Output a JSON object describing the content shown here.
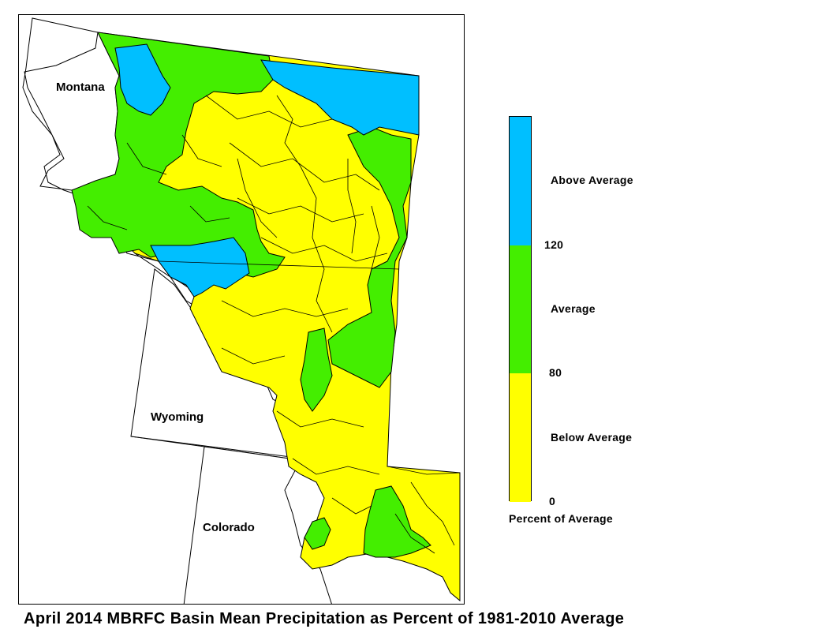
{
  "map": {
    "states": [
      {
        "name": "Montana"
      },
      {
        "name": "Wyoming"
      },
      {
        "name": "Colorado"
      }
    ]
  },
  "legend": {
    "title": "Percent of Average",
    "classes": [
      {
        "label": "Above Average",
        "color": "#00BFFF",
        "range": [
          120,
          null
        ]
      },
      {
        "label": "Average",
        "color": "#44EE00",
        "range": [
          80,
          120
        ]
      },
      {
        "label": "Below Average",
        "color": "#FFFF00",
        "range": [
          0,
          80
        ]
      }
    ],
    "thresholds": [
      "120",
      "80",
      "0"
    ]
  },
  "colors": {
    "above": "#00BFFF",
    "average": "#44EE00",
    "below": "#FFFF00",
    "outline": "#000000"
  },
  "caption": "April 2014 MBRFC Basin Mean Precipitation as Percent of 1981-2010 Average"
}
